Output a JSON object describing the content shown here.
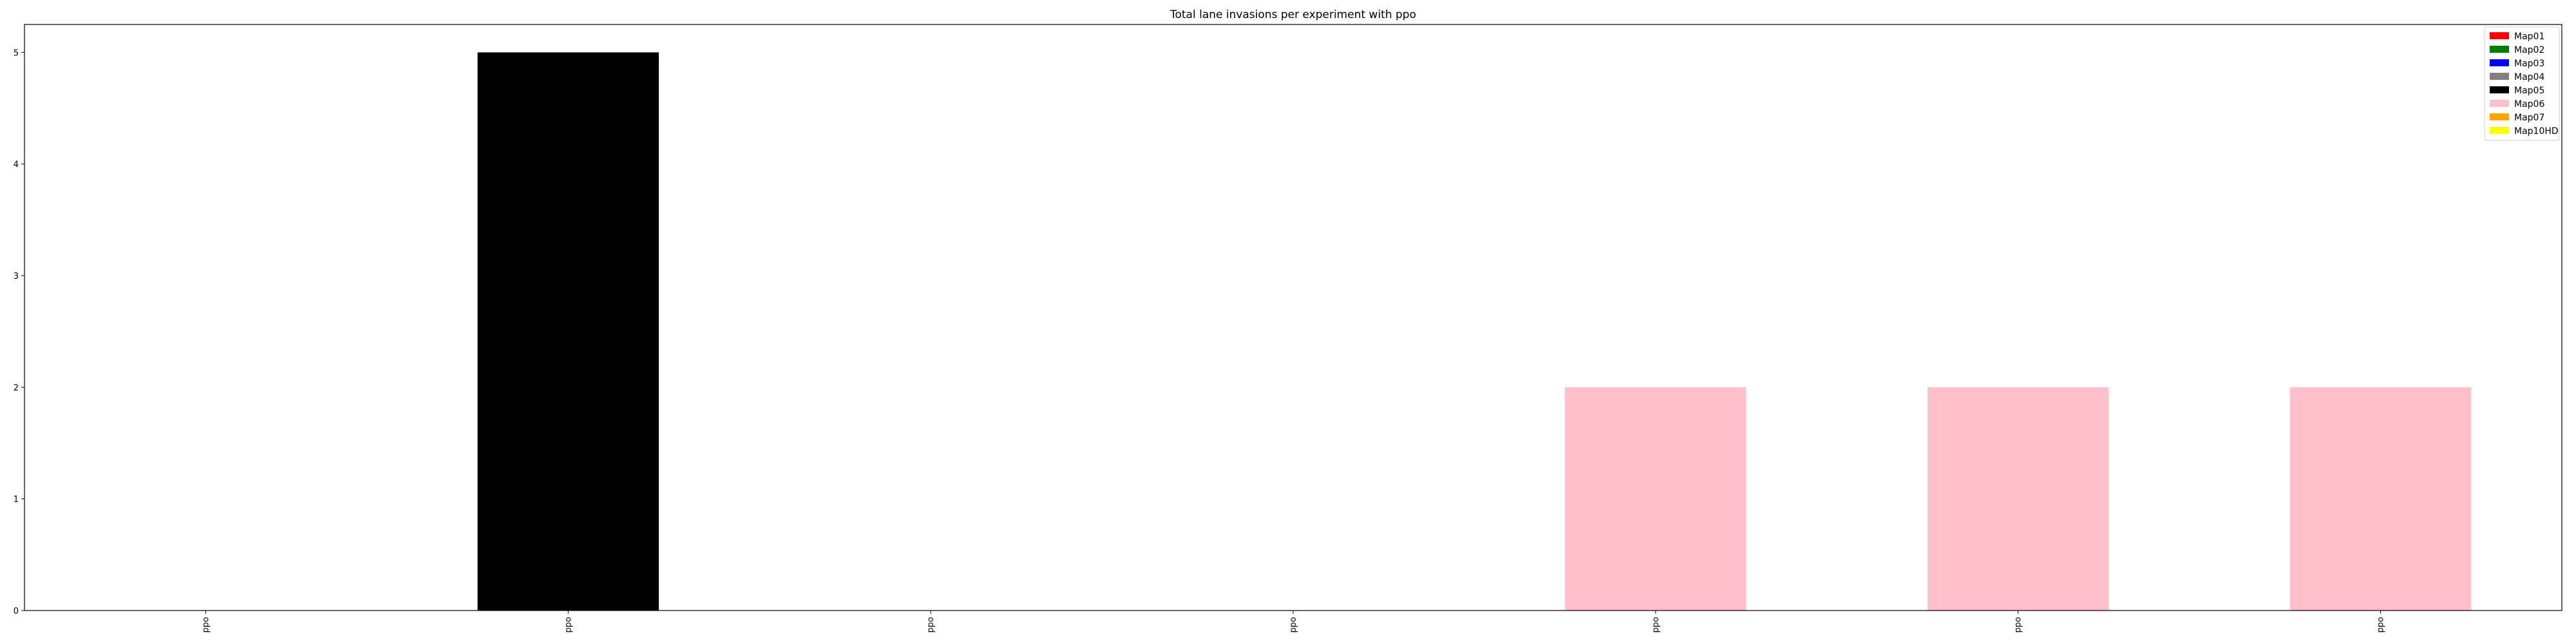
{
  "chart_data": {
    "type": "bar",
    "title": "Total lane invasions per experiment with ppo",
    "xlabel": "",
    "ylabel": "",
    "categories": [
      "ppo",
      "ppo",
      "ppo",
      "ppo",
      "ppo",
      "ppo",
      "ppo"
    ],
    "bars": [
      {
        "value": 0,
        "series": "Map01",
        "color": "#ff0000"
      },
      {
        "value": 5,
        "series": "Map05",
        "color": "#000000"
      },
      {
        "value": 0,
        "series": "Map01",
        "color": "#ff0000"
      },
      {
        "value": 0,
        "series": "Map01",
        "color": "#ff0000"
      },
      {
        "value": 2,
        "series": "Map06",
        "color": "#ffc0cb"
      },
      {
        "value": 2,
        "series": "Map06",
        "color": "#ffc0cb"
      },
      {
        "value": 2,
        "series": "Map06",
        "color": "#ffc0cb"
      }
    ],
    "ylim": [
      0,
      5.25
    ],
    "yticks": [
      0,
      1,
      2,
      3,
      4,
      5
    ],
    "xtick_rotation": 90,
    "grid": false,
    "legend": {
      "placement": "top-right",
      "entries": [
        {
          "name": "Map01",
          "color": "#ff0000"
        },
        {
          "name": "Map02",
          "color": "#008000"
        },
        {
          "name": "Map03",
          "color": "#0000ff"
        },
        {
          "name": "Map04",
          "color": "#808080"
        },
        {
          "name": "Map05",
          "color": "#000000"
        },
        {
          "name": "Map06",
          "color": "#ffc0cb"
        },
        {
          "name": "Map07",
          "color": "#ffa500"
        },
        {
          "name": "Map10HD",
          "color": "#ffff00"
        }
      ]
    }
  }
}
